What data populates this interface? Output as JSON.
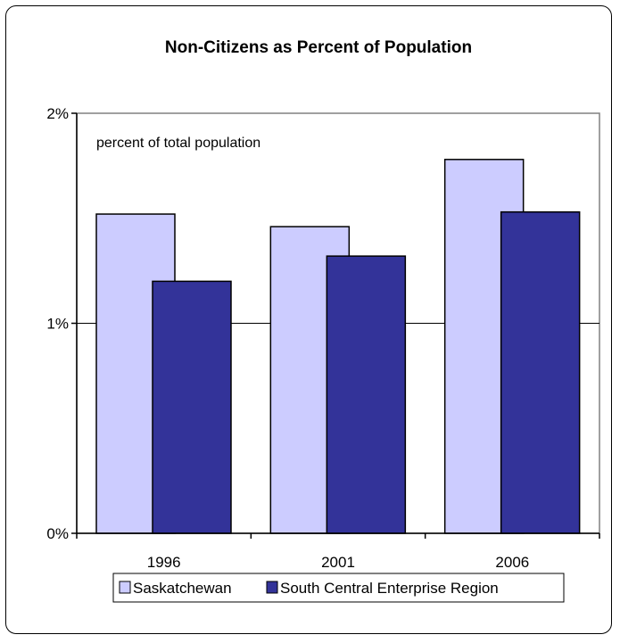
{
  "chart_data": {
    "type": "bar",
    "title": "Non-Citizens as Percent of Population",
    "annotation": "percent of total population",
    "categories": [
      "1996",
      "2001",
      "2006"
    ],
    "series": [
      {
        "name": "Saskatchewan",
        "values": [
          1.52,
          1.46,
          1.78
        ],
        "color": "#ccccff"
      },
      {
        "name": "South Central Enterprise Region",
        "values": [
          1.2,
          1.32,
          1.53
        ],
        "color": "#333399"
      }
    ],
    "ylim": [
      0,
      2
    ],
    "yticks": [
      0,
      1,
      2
    ],
    "ytick_labels": [
      "0%",
      "1%",
      "2%"
    ],
    "grid": true,
    "legend_position": "bottom"
  }
}
